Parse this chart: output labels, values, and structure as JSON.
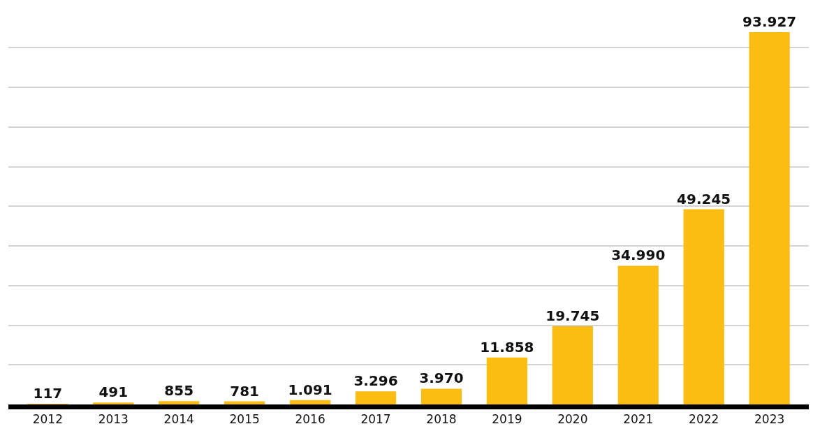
{
  "chart_data": {
    "type": "bar",
    "categories": [
      "2012",
      "2013",
      "2014",
      "2015",
      "2016",
      "2017",
      "2018",
      "2019",
      "2020",
      "2021",
      "2022",
      "2023"
    ],
    "values": [
      117,
      491,
      855,
      781,
      1091,
      3296,
      3970,
      11858,
      19745,
      34990,
      49245,
      93927
    ],
    "value_labels": [
      "117",
      "491",
      "855",
      "781",
      "1.091",
      "3.296",
      "3.970",
      "11.858",
      "19.745",
      "34.990",
      "49.245",
      "93.927"
    ],
    "color": "#fbbd12",
    "tick_labels": "x",
    "grid": "y",
    "legend": false
  }
}
